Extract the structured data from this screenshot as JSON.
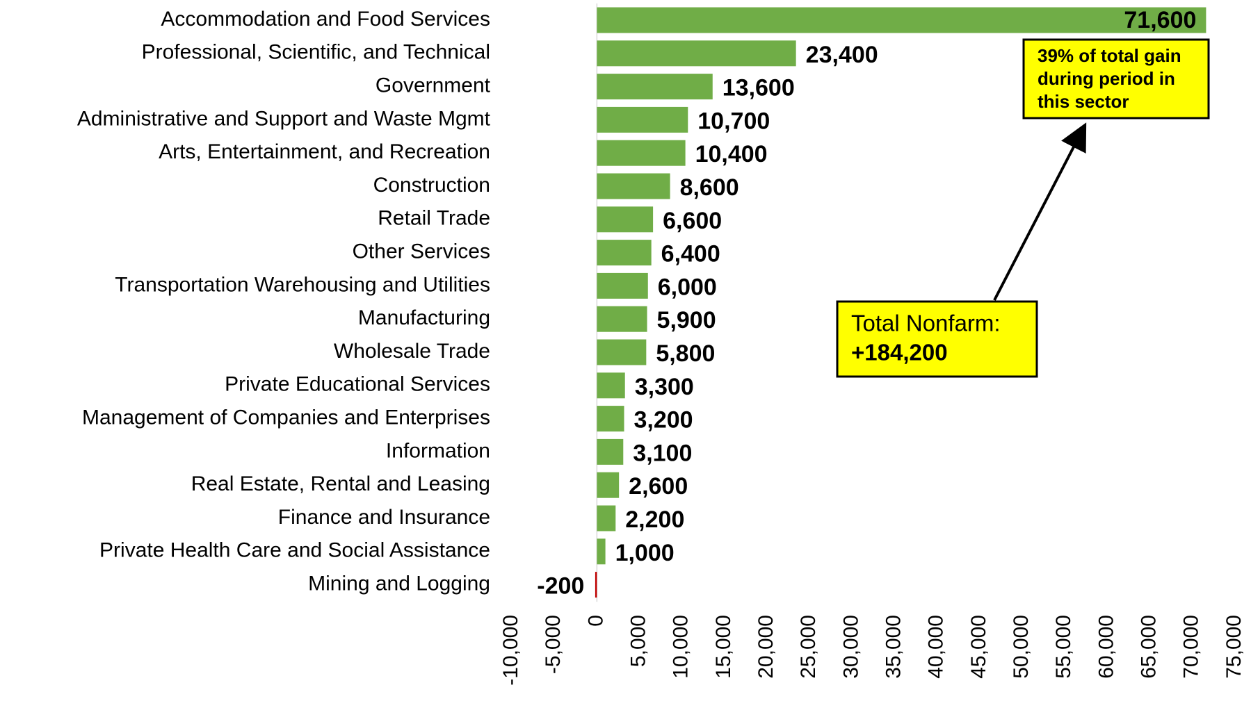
{
  "chart_data": {
    "type": "hbar",
    "categories": [
      "Accommodation and Food Services",
      "Professional, Scientific, and Technical",
      "Government",
      "Administrative and Support and Waste Mgmt",
      "Arts, Entertainment, and Recreation",
      "Construction",
      "Retail Trade",
      "Other Services",
      "Transportation Warehousing and Utilities",
      "Manufacturing",
      "Wholesale Trade",
      "Private Educational Services",
      "Management of Companies and Enterprises",
      "Information",
      "Real Estate, Rental and Leasing",
      "Finance and Insurance",
      "Private Health Care and Social Assistance",
      "Mining and Logging"
    ],
    "values": [
      71600,
      23400,
      13600,
      10700,
      10400,
      8600,
      6600,
      6400,
      6000,
      5900,
      5800,
      3300,
      3200,
      3100,
      2600,
      2200,
      1000,
      -200
    ],
    "value_labels": [
      "71,600",
      "23,400",
      "13,600",
      "10,700",
      "10,400",
      "8,600",
      "6,600",
      "6,400",
      "6,000",
      "5,900",
      "5,800",
      "3,300",
      "3,200",
      "3,100",
      "2,600",
      "2,200",
      "1,000",
      "-200"
    ],
    "color": "#70ad47",
    "negative_color": "#c00000",
    "xlim": [
      -10000,
      75000
    ],
    "xticks": [
      {
        "value": -10000,
        "label": "-10,000"
      },
      {
        "value": -5000,
        "label": "-5,000"
      },
      0,
      {
        "value": 5000,
        "label": "5,000"
      },
      {
        "value": 10000,
        "label": "10,000"
      },
      {
        "value": 15000,
        "label": "15,000"
      },
      {
        "value": 20000,
        "label": "20,000"
      },
      {
        "value": 25000,
        "label": "25,000"
      },
      {
        "value": 30000,
        "label": "30,000"
      },
      {
        "value": 35000,
        "label": "35,000"
      },
      {
        "value": 40000,
        "label": "40,000"
      },
      {
        "value": 45000,
        "label": "45,000"
      },
      {
        "value": 50000,
        "label": "50,000"
      },
      {
        "value": 55000,
        "label": "55,000"
      },
      {
        "value": 60000,
        "label": "60,000"
      },
      {
        "value": 65000,
        "label": "65,000"
      },
      {
        "value": 70000,
        "label": "70,000"
      },
      {
        "value": {
          "value": 75000
        },
        "label": "75,000"
      }
    ],
    "annotations": [
      {
        "lines": [
          "39% of total gain",
          "during period in",
          "this sector"
        ]
      },
      {
        "lines": [
          "Total Nonfarm:",
          "+184,200"
        ]
      }
    ],
    "annotation_color": "#ffff00"
  }
}
